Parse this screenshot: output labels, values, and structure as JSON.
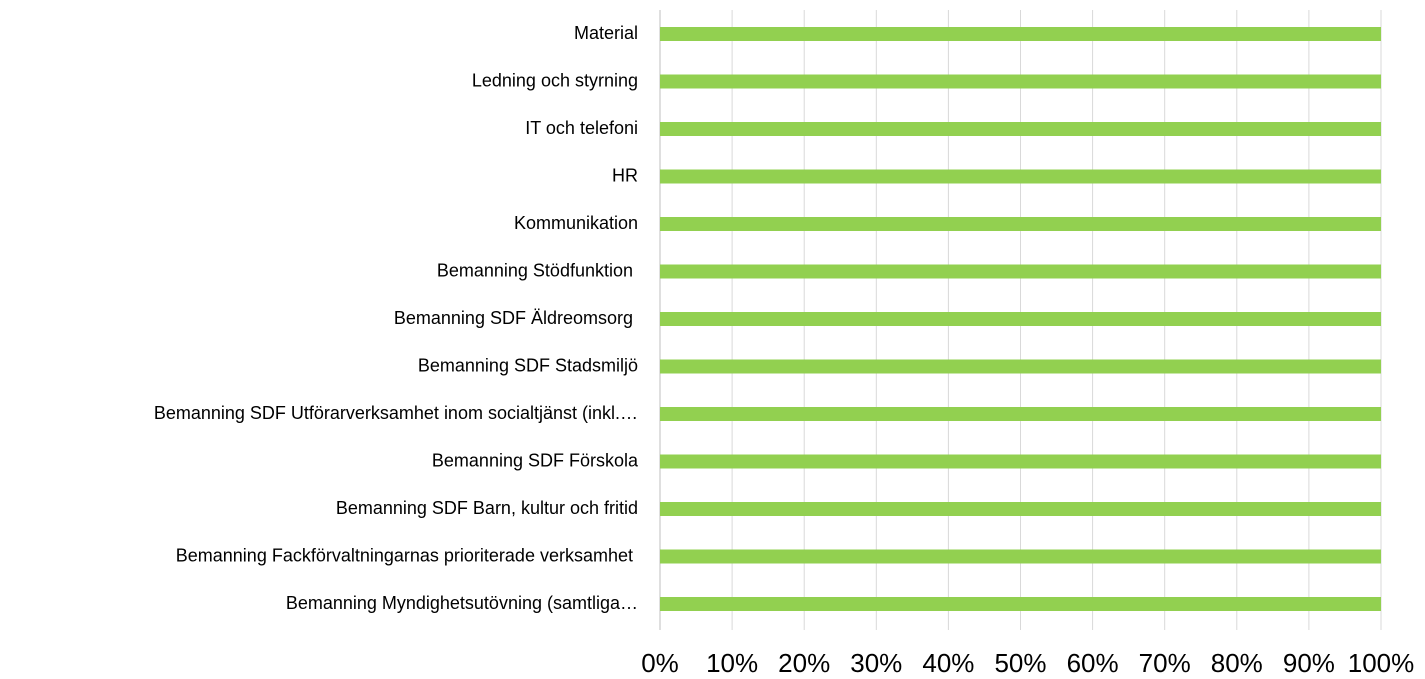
{
  "chart_data": {
    "type": "bar",
    "orientation": "horizontal",
    "categories": [
      "Material",
      "Ledning och styrning",
      "IT och telefoni",
      "HR",
      "Kommunikation",
      "Bemanning Stödfunktion ",
      "Bemanning SDF Äldreomsorg ",
      "Bemanning SDF Stadsmiljö",
      "Bemanning SDF Utförarverksamhet inom socialtjänst (inkl.…",
      "Bemanning SDF Förskola",
      "Bemanning SDF Barn, kultur och fritid",
      "Bemanning Fackförvaltningarnas prioriterade verksamhet ",
      "Bemanning Myndighetsutövning (samtliga…"
    ],
    "values": [
      100,
      100,
      100,
      100,
      100,
      100,
      100,
      100,
      100,
      100,
      100,
      100,
      100
    ],
    "color": "#92d050",
    "xlim": [
      0,
      100
    ],
    "xticks": [
      {
        "value": 0,
        "label": "0%"
      },
      {
        "value": 10,
        "label": "10%"
      },
      {
        "value": 20,
        "label": "20%"
      },
      {
        "value": 30,
        "label": "30%"
      },
      {
        "value": 40,
        "label": "40%"
      },
      {
        "value": 50,
        "label": "50%"
      },
      {
        "value": 60,
        "label": "60%"
      },
      {
        "value": 70,
        "label": "70%"
      },
      {
        "value": 80,
        "label": "80%"
      },
      {
        "value": 90,
        "label": "90%"
      },
      {
        "value": 100,
        "label": "100%"
      }
    ],
    "grid": true
  }
}
